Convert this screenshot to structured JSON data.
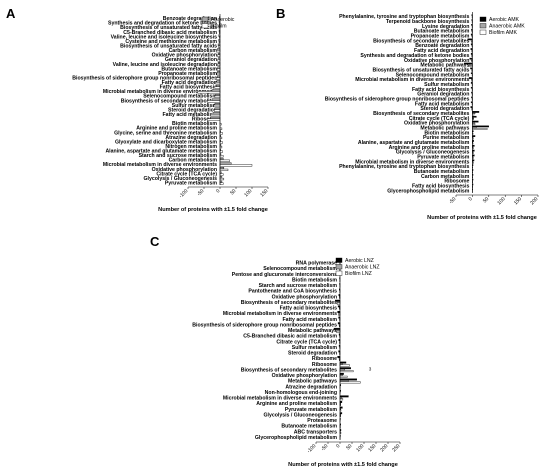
{
  "chart_data": [
    {
      "type": "bar",
      "orientation": "horizontal",
      "panel_label": "A",
      "xlabel": "Number of proteins with ±1.5 fold change",
      "xlim": [
        -100,
        150
      ],
      "xticks": [
        -100,
        -50,
        0,
        50,
        100,
        150
      ],
      "grid": false,
      "legend_position": "top-right",
      "categories": [
        "Benzoate degradation",
        "Synthesis and degradation of ketone bodies",
        "Biosynthesis of unsaturated fatty acids",
        "C5-Branched dibasic acid metabolism",
        "Valine, leucine and isoleucine biosynthesis",
        "Cysteine and methionine metabolism",
        "Biosynthesis of unsaturated fatty acids",
        "Carbon metabolism",
        "Oxidative phosphorylation",
        "Geraniol degradation",
        "Valine, leucine and isoleucine degradation",
        "Butanoate metabolism",
        "Propanoate metabolism",
        "Biosynthesis of siderophore group nonribosomal peptides",
        "Fatty acid degradation",
        "Fatty acid biosynthesis",
        "Microbial metabolism in diverse environments",
        "Selenocompound metabolism",
        "Biosynthesis of secondary metabolites",
        "Sulfur metabolism",
        "Steroid degradation",
        "Fatty acid metabolism",
        "Ribosome",
        "Biotin metabolism",
        "Arginine and proline metabolism",
        "Glycine, serine and threonine metabolism",
        "Atrazine degradation",
        "Glyoxylate and dicarboxylate metabolism",
        "Nitrogen metabolism",
        "Alanine, aspartate and glutamate metabolism",
        "Starch and sucrose metabolism",
        "Carbon metabolism",
        "Microbial metabolism in diverse environments",
        "Oxidative phosphorylation",
        "Citrate cycle (TCA cycle)",
        "Glycolysis / Gluconeogenesis",
        "Pyruvate metabolism"
      ],
      "series": [
        {
          "name": "Anaerobic",
          "color": "#a6a6a6",
          "values": [
            -2,
            -3,
            -4,
            -3,
            -4,
            -4,
            -6,
            -8,
            -6,
            -6,
            -6,
            -7,
            -8,
            -9,
            -10,
            -12,
            -25,
            -14,
            -25,
            -16,
            -16,
            -22,
            -30,
            0,
            0,
            2,
            2,
            2,
            3,
            2,
            3,
            10,
            35,
            12,
            4,
            6,
            6
          ]
        },
        {
          "name": "Biofilm",
          "color": "#ffffff",
          "values": [
            -1,
            -2,
            -3,
            -2,
            -2,
            -3,
            -5,
            -12,
            -8,
            -7,
            -8,
            -9,
            -10,
            -12,
            -14,
            -16,
            -70,
            -16,
            -40,
            -20,
            -18,
            -30,
            -40,
            4,
            6,
            8,
            6,
            8,
            6,
            8,
            10,
            30,
            100,
            25,
            10,
            12,
            10
          ]
        }
      ]
    },
    {
      "type": "bar",
      "orientation": "horizontal",
      "panel_label": "B",
      "xlabel": "Number of proteins with ±1.5 fold change",
      "xlim": [
        -50,
        200
      ],
      "xticks": [
        -50,
        0,
        50,
        100,
        150,
        200
      ],
      "grid": false,
      "legend_position": "top-right",
      "categories": [
        "Phenylalanine, tyrosine and tryptophan biosynthesis",
        "Terpenoid backbone biosynthesis",
        "Lysine degradation",
        "Butanoate metabolism",
        "Propanoate metabolism",
        "Biosynthesis of secondary metabolites",
        "Benzoate degradation",
        "Fatty acid degradation",
        "Synthesis and degradation of ketone bodies",
        "Oxidative phosphorylation",
        "Metabolic pathways",
        "Biosynthesis of unsaturated fatty acids",
        "Selenocompound metabolism",
        "Microbial metabolism in diverse environments",
        "Sulfur metabolism",
        "Fatty acid biosynthesis",
        "Geraniol degradation",
        "Biosynthesis of siderophore group nonribosomal peptides",
        "Fatty acid metabolism",
        "Steroid degradation",
        "Biosynthesis of secondary metabolites",
        "Citrate cycle (TCA cycle)",
        "Oxidative phosphorylation",
        "Metabolic pathways",
        "Biotin metabolism",
        "Purine metabolism",
        "Alanine, aspartate and glutamate metabolism",
        "Arginine and proline metabolism",
        "Glycolysis / Gluconeogenesis",
        "Pyruvate metabolism",
        "Microbial metabolism in diverse environments",
        "Phenylalanine, tyrosine and tryptophan biosynthesis",
        "Butanoate metabolism",
        "Carbon metabolism",
        "Ribosome",
        "Fatty acid biosynthesis",
        "Glycerophospholipid metabolism"
      ],
      "series": [
        {
          "name": "Aerobic AMK",
          "color": "#000000",
          "values": [
            -2,
            -2,
            -3,
            -3,
            -4,
            -14,
            -4,
            -5,
            -4,
            -8,
            -25,
            -6,
            -4,
            -10,
            -4,
            -4,
            -3,
            -3,
            -4,
            -5,
            20,
            12,
            18,
            50,
            3,
            8,
            4,
            6,
            6,
            6,
            5,
            2,
            2,
            2,
            2,
            2,
            1
          ]
        },
        {
          "name": "Anaerobic AMK",
          "color": "#a6a6a6",
          "values": [
            -1,
            -1,
            -1,
            -2,
            -2,
            -4,
            -2,
            -2,
            -2,
            -4,
            -8,
            -2,
            -1,
            -3,
            -1,
            -1,
            -1,
            -1,
            -1,
            -2,
            8,
            4,
            6,
            12,
            0,
            2,
            1,
            2,
            2,
            2,
            2,
            0,
            0,
            0,
            0,
            0,
            0
          ]
        },
        {
          "name": "Biofilm AMK",
          "color": "#ffffff",
          "values": [
            -1,
            -1,
            -1,
            -1,
            -1,
            -3,
            -1,
            -2,
            -2,
            -3,
            -12,
            -2,
            -1,
            -3,
            -1,
            -1,
            -1,
            -1,
            -1,
            -2,
            5,
            4,
            8,
            45,
            2,
            3,
            2,
            3,
            3,
            3,
            3,
            1,
            1,
            1,
            1,
            1,
            0
          ]
        }
      ]
    },
    {
      "type": "bar",
      "orientation": "horizontal",
      "panel_label": "C",
      "xlabel": "Number of proteins with ±1.5 fold change",
      "xlim": [
        -100,
        250
      ],
      "xticks": [
        -100,
        -50,
        0,
        50,
        100,
        150,
        200,
        250
      ],
      "grid": false,
      "legend_position": "top-right",
      "annotation": "3",
      "categories": [
        "RNA polymerase",
        "Selenocompound metabolism",
        "Pentose and glucuronate interconversions",
        "Biotin metabolism",
        "Starch and sucrose metabolism",
        "Pantothenate and CoA biosynthesis",
        "Oxidative phosphorylation",
        "Biosynthesis of secondary metabolites",
        "Fatty acid biosynthesis",
        "Microbial metabolism in diverse environments",
        "Fatty acid metabolism",
        "Biosynthesis of siderophore group nonribosomal peptides",
        "Metabolic pathways",
        "C5-Branched dibasic acid metabolism",
        "Citrate cycle (TCA cycle)",
        "Sulfur metabolism",
        "Steroid degradation",
        "Ribosome",
        "Ribosome",
        "Biosynthesis of secondary metabolites",
        "Oxidative phosphorylation",
        "Metabolic pathways",
        "Atrazine degradation",
        "Non-homologous end-joining",
        "Microbial metabolism in diverse environments",
        "Arginine and proline metabolism",
        "Pyruvate metabolism",
        "Glycolysis / Gluconeogenesis",
        "Proteasome",
        "Butanoate metabolism",
        "ABC transporters",
        "Glycerophospholipid metabolism"
      ],
      "series": [
        {
          "name": "Aerobic LNZ",
          "color": "#000000",
          "values": [
            -1,
            -1,
            -2,
            -2,
            -2,
            -3,
            -5,
            -20,
            -8,
            -10,
            -6,
            -8,
            -25,
            -4,
            -5,
            -4,
            -6,
            -10,
            25,
            45,
            15,
            70,
            3,
            3,
            35,
            8,
            10,
            8,
            2,
            3,
            4,
            2
          ]
        },
        {
          "name": "Anaerobic LNZ",
          "color": "#a6a6a6",
          "values": [
            0,
            -1,
            -1,
            -1,
            -1,
            -1,
            -3,
            -10,
            -3,
            -6,
            -2,
            -4,
            -18,
            -2,
            -2,
            -2,
            -2,
            -4,
            10,
            20,
            10,
            35,
            1,
            1,
            8,
            3,
            3,
            3,
            1,
            1,
            2,
            1
          ]
        },
        {
          "name": "Biofilm LNZ",
          "color": "#ffffff",
          "values": [
            0,
            -1,
            -1,
            -1,
            -1,
            -1,
            -2,
            -12,
            -2,
            -5,
            -2,
            -3,
            -15,
            -1,
            -2,
            -1,
            -2,
            -3,
            40,
            55,
            30,
            85,
            1,
            0,
            12,
            3,
            4,
            3,
            0,
            2,
            4,
            1
          ]
        }
      ]
    }
  ]
}
